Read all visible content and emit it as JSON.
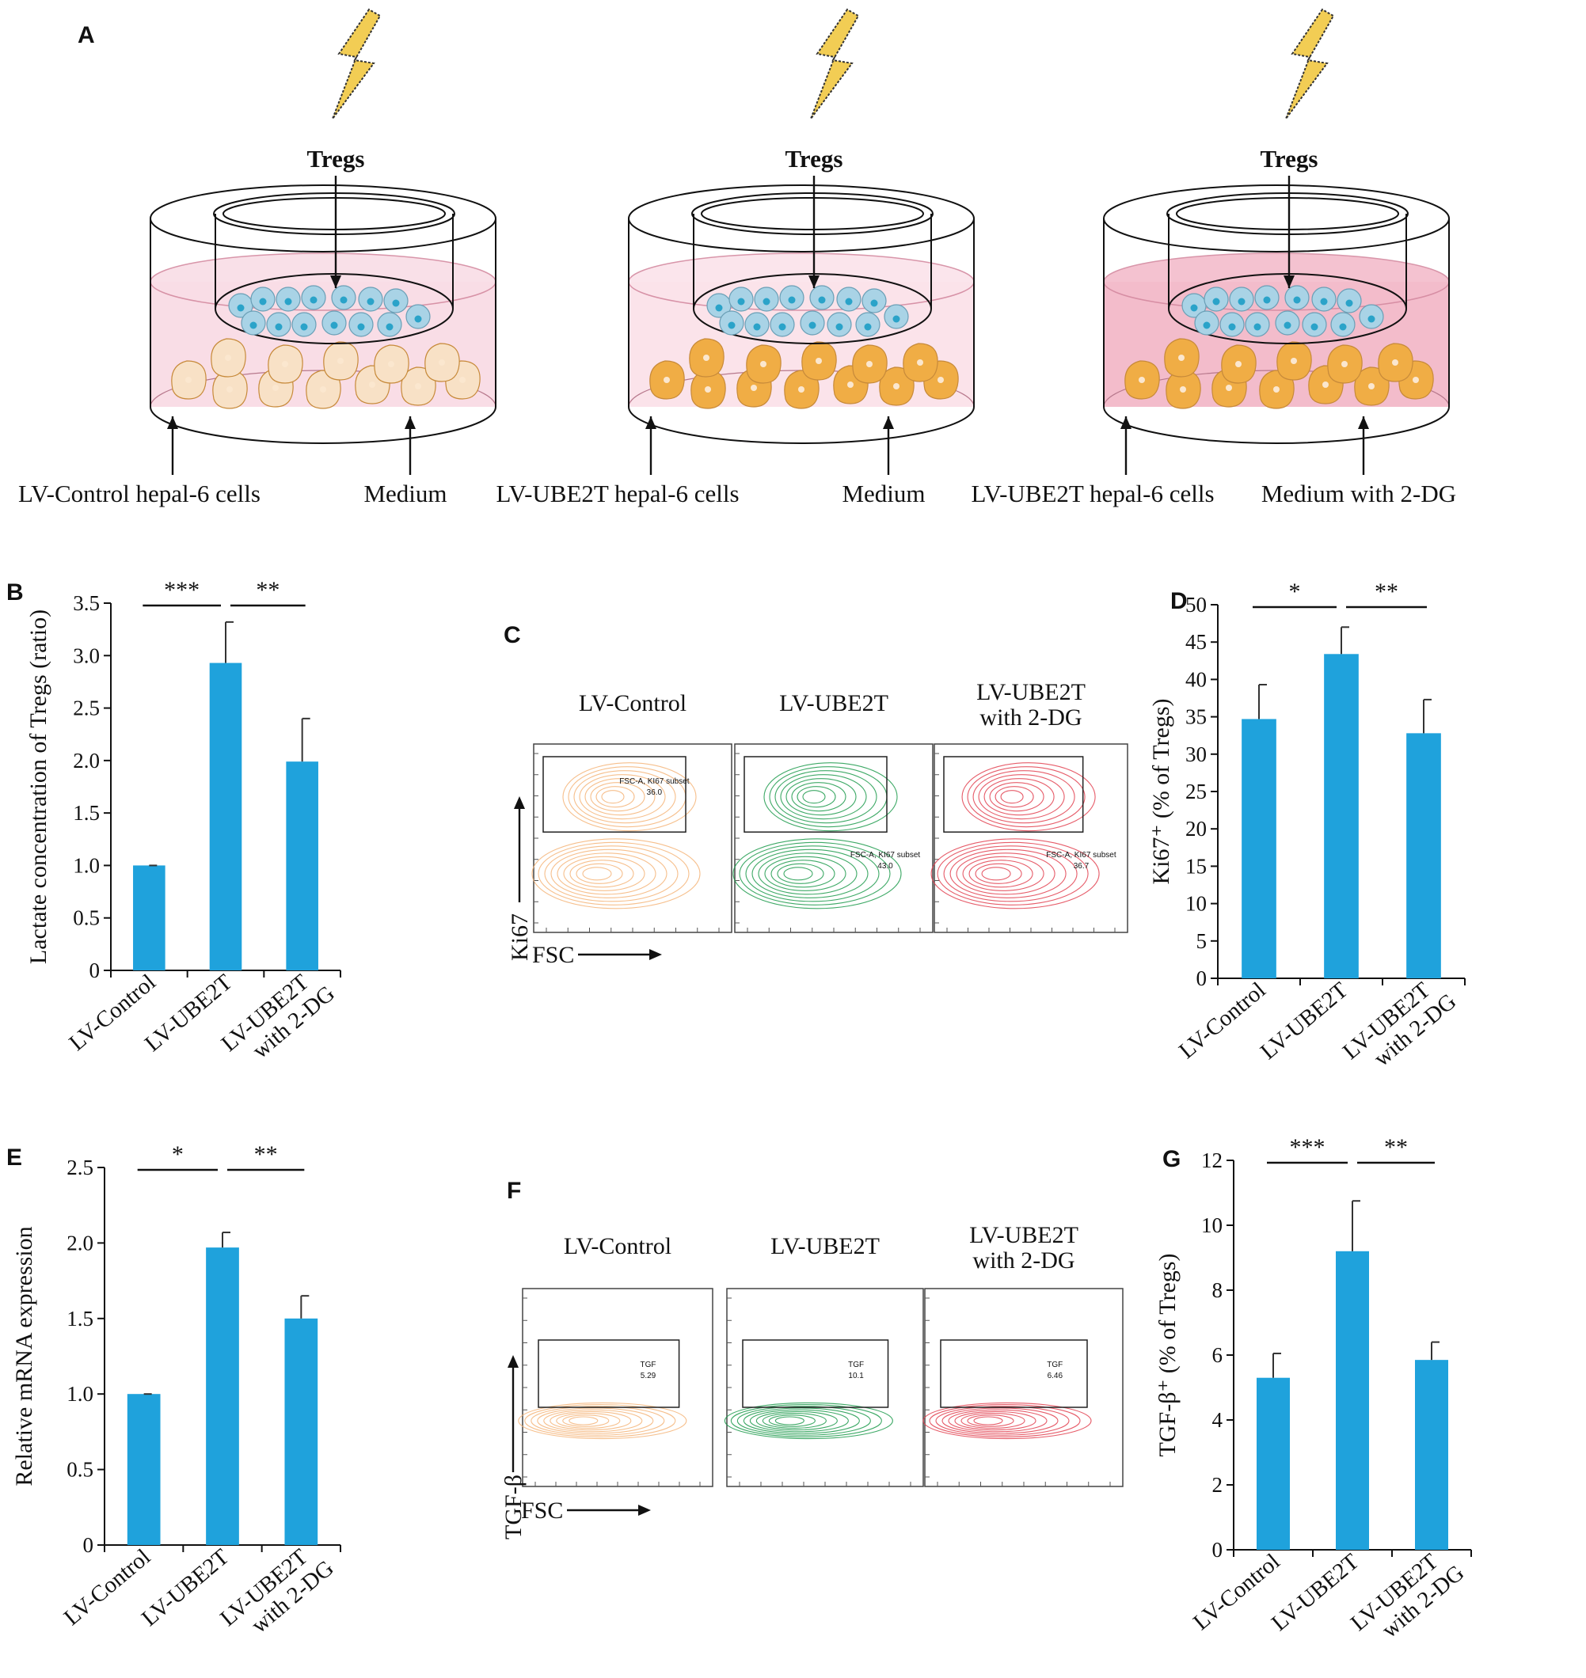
{
  "panel_labels": [
    "A",
    "B",
    "C",
    "D",
    "E",
    "F",
    "G"
  ],
  "schematic": {
    "insert_label": "Tregs",
    "dishes": [
      {
        "cells_label": "LV-Control hepal-6 cells",
        "medium_label": "Medium",
        "cell_color": "#f8e1c6",
        "medium_color": "#f9dde6"
      },
      {
        "cells_label": "LV-UBE2T hepal-6 cells",
        "medium_label": "Medium",
        "cell_color": "#f0ad45",
        "medium_color": "#fbe3ea"
      },
      {
        "cells_label": "LV-UBE2T hepal-6 cells",
        "medium_label": "Medium with 2-DG",
        "cell_color": "#f0ad45",
        "medium_color": "#f3bccb"
      }
    ],
    "colors": {
      "treg": "#a9d3e6",
      "treg_nucleus": "#2aa3c9",
      "bolt": "#f2cd54"
    }
  },
  "chart_data": [
    {
      "panel": "B",
      "type": "bar",
      "ylabel": "Lactate concentration of Tregs (ratio)",
      "categories": [
        "LV-Control",
        "LV-UBE2T",
        "LV-UBE2T with 2-DG"
      ],
      "values": [
        1.0,
        2.93,
        1.99
      ],
      "errors": [
        0.0,
        0.39,
        0.41
      ],
      "ylim": [
        0,
        3.5
      ],
      "ticks": [
        "0",
        "0.5",
        "1.0",
        "1.5",
        "2.0",
        "2.5",
        "3.0",
        "3.5"
      ],
      "significance": [
        {
          "from": 0,
          "to": 1,
          "label": "***"
        },
        {
          "from": 1,
          "to": 2,
          "label": "**"
        }
      ],
      "bar_color": "#1fa2dc"
    },
    {
      "panel": "D",
      "type": "bar",
      "ylabel": "Ki67⁺ (% of Tregs)",
      "categories": [
        "LV-Control",
        "LV-UBE2T",
        "LV-UBE2T with 2-DG"
      ],
      "values": [
        34.7,
        43.4,
        32.8
      ],
      "errors": [
        4.6,
        3.6,
        4.5
      ],
      "ylim": [
        0,
        50
      ],
      "ticks": [
        "0",
        "5",
        "10",
        "15",
        "20",
        "25",
        "30",
        "35",
        "40",
        "45",
        "50"
      ],
      "significance": [
        {
          "from": 0,
          "to": 1,
          "label": "*"
        },
        {
          "from": 1,
          "to": 2,
          "label": "**"
        }
      ],
      "bar_color": "#1fa2dc"
    },
    {
      "panel": "E",
      "type": "bar",
      "ylabel": "Relative mRNA expression",
      "categories": [
        "LV-Control",
        "LV-UBE2T",
        "LV-UBE2T with 2-DG"
      ],
      "values": [
        1.0,
        1.97,
        1.5
      ],
      "errors": [
        0.0,
        0.1,
        0.15
      ],
      "ylim": [
        0,
        2.5
      ],
      "ticks": [
        "0",
        "0.5",
        "1.0",
        "1.5",
        "2.0",
        "2.5"
      ],
      "significance": [
        {
          "from": 0,
          "to": 1,
          "label": "*"
        },
        {
          "from": 1,
          "to": 2,
          "label": "**"
        }
      ],
      "bar_color": "#1fa2dc"
    },
    {
      "panel": "G",
      "type": "bar",
      "ylabel": "TGF-β⁺ (% of Tregs)",
      "categories": [
        "LV-Control",
        "LV-UBE2T",
        "LV-UBE2T with 2-DG"
      ],
      "values": [
        5.3,
        9.2,
        5.85
      ],
      "errors": [
        0.75,
        1.55,
        0.55
      ],
      "ylim": [
        0,
        12
      ],
      "ticks": [
        "0",
        "2",
        "4",
        "6",
        "8",
        "10",
        "12"
      ],
      "significance": [
        {
          "from": 0,
          "to": 1,
          "label": "***"
        },
        {
          "from": 1,
          "to": 2,
          "label": "**"
        }
      ],
      "bar_color": "#1fa2dc"
    }
  ],
  "flow": [
    {
      "panel": "C",
      "x_axis": "FSC",
      "y_axis": "Ki67",
      "plots": [
        {
          "title": [
            "LV-Control"
          ],
          "gate_text": [
            "FSC-A, KI67 subset",
            "36.0"
          ],
          "ungated_text": [],
          "color": "#f5b478"
        },
        {
          "title": [
            "LV-UBE2T"
          ],
          "gate_text": [],
          "ungated_text": [
            "FSC-A, KI67 subset",
            "43.0"
          ],
          "color": "#1c9a4b"
        },
        {
          "title": [
            "LV-UBE2T",
            "with 2-DG"
          ],
          "gate_text": [],
          "ungated_text": [
            "FSC-A, KI67 subset",
            "36.7"
          ],
          "color": "#e2404f"
        }
      ]
    },
    {
      "panel": "F",
      "x_axis": "FSC",
      "y_axis": "TGF-β",
      "plots": [
        {
          "title": [
            "LV-Control"
          ],
          "gate_text": [
            "TGF",
            "5.29"
          ],
          "ungated_text": [],
          "color": "#f5b478"
        },
        {
          "title": [
            "LV-UBE2T"
          ],
          "gate_text": [
            "TGF",
            "10.1"
          ],
          "ungated_text": [],
          "color": "#1c9a4b"
        },
        {
          "title": [
            "LV-UBE2T",
            "with 2-DG"
          ],
          "gate_text": [
            "TGF",
            "6.46"
          ],
          "ungated_text": [],
          "color": "#e2404f"
        }
      ]
    }
  ]
}
